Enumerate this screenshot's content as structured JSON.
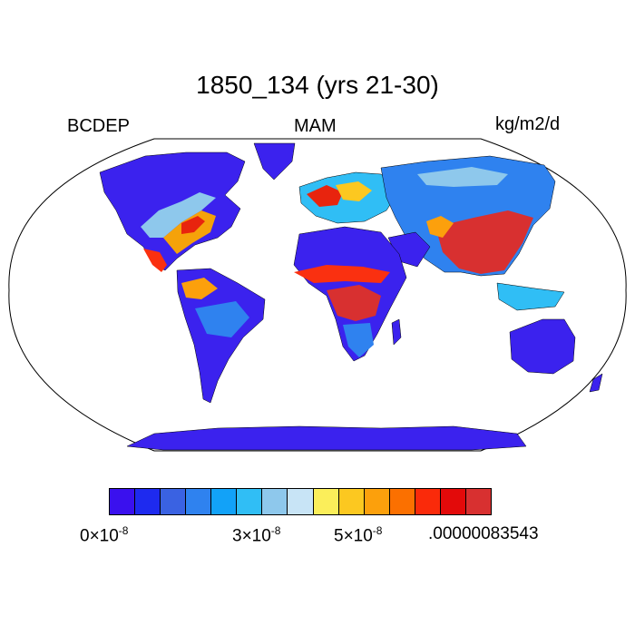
{
  "title": "1850_134 (yrs 21-30)",
  "left_label": "BCDEP",
  "center_label": "MAM",
  "right_label": "kg/m2/d",
  "colorbar": {
    "colors": [
      "#3a10ee",
      "#1e2aef",
      "#3a62e2",
      "#2f82ef",
      "#12a2f8",
      "#30bef5",
      "#8ec8ec",
      "#c8e4f6",
      "#fbee5a",
      "#fcc820",
      "#fca00c",
      "#fb7000",
      "#fa2a0a",
      "#e30a0a",
      "#d83030"
    ],
    "tick_labels": [
      {
        "base": "0×10",
        "exp": "-8"
      },
      {
        "base": "3×10",
        "exp": "-8"
      },
      {
        "base": "5×10",
        "exp": "-8"
      },
      {
        "base": ".00000083543",
        "exp": ""
      }
    ]
  }
}
